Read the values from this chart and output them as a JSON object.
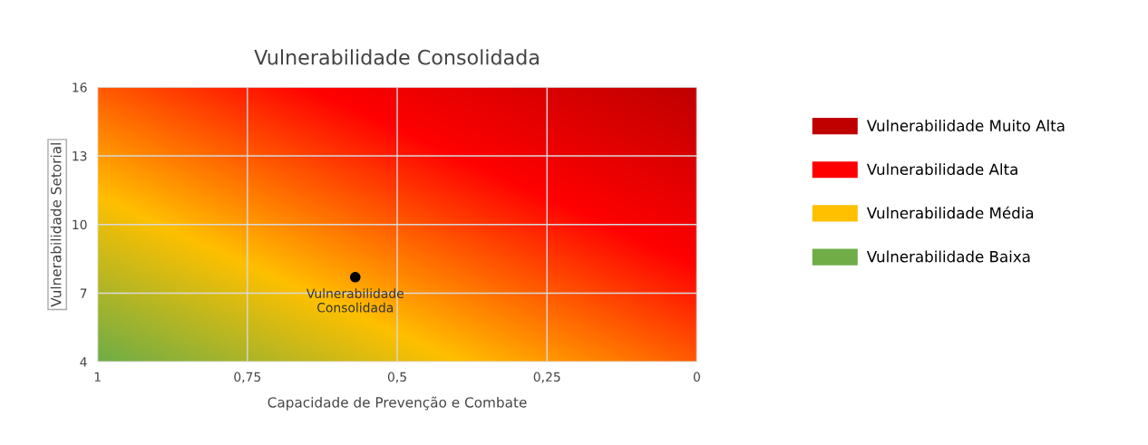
{
  "chart_data": {
    "type": "scatter",
    "title": "Vulnerabilidade Consolidada",
    "xlabel": "Capacidade de Prevenção e Combate",
    "ylabel": "Vulnerabilidade Setorial",
    "xlim": [
      1,
      0
    ],
    "xticks": [
      1,
      {
        "value": 0.75,
        "label": "0,75"
      },
      {
        "value": 0.5,
        "label": "0,5"
      },
      {
        "value": 0.25,
        "label": "0,25"
      },
      0
    ],
    "ylim": [
      4,
      16
    ],
    "yticks": [
      4,
      7,
      10,
      13,
      16
    ],
    "grid": true,
    "legend": "right",
    "annotations": [
      {
        "text": "Vulnerabilidade\nConsolidada",
        "x": 0.57,
        "y": 7.7
      }
    ],
    "series": [
      {
        "color": "#000000",
        "x": [
          0.57
        ],
        "values": [
          7.7
        ]
      },
      {
        "type": "area",
        "name": "Vulnerabilidade Muito Alta",
        "color": "#c00000",
        "values": [
          null
        ]
      },
      {
        "type": "area",
        "name": "Vulnerabilidade Alta",
        "color": "#ff0000",
        "values": [
          null
        ]
      },
      {
        "type": "area",
        "name": "Vulnerabilidade Média",
        "color": "#ffc000",
        "values": [
          null
        ]
      },
      {
        "type": "area",
        "name": "Vulnerabilidade Baixa",
        "color": "#70ad47",
        "values": [
          null
        ]
      }
    ]
  }
}
